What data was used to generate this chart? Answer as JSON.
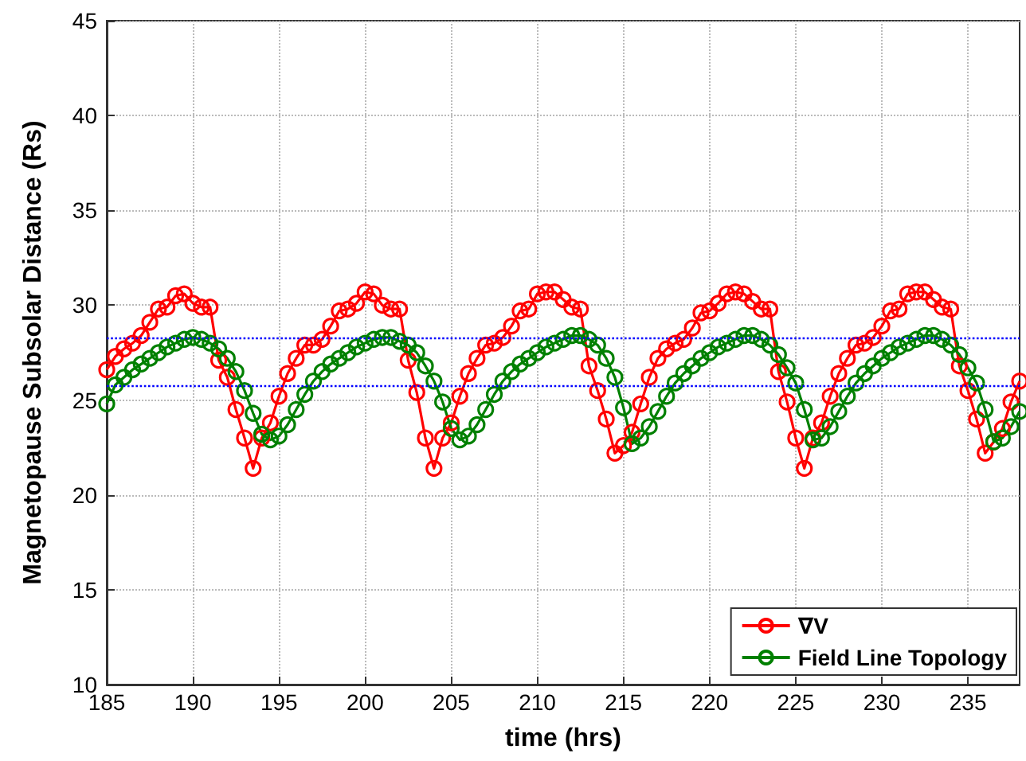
{
  "chart_data": {
    "type": "line",
    "xlabel": "time (hrs)",
    "ylabel": "Magnetopause Subsolar Distance (Rs)",
    "x": [
      185,
      185.5,
      186,
      186.5,
      187,
      187.5,
      188,
      188.5,
      189,
      189.5,
      190,
      190.5,
      191,
      191.5,
      192,
      192.5,
      193,
      193.5,
      194,
      194.5,
      195,
      195.5,
      196,
      196.5,
      197,
      197.5,
      198,
      198.5,
      199,
      199.5,
      200,
      200.5,
      201,
      201.5,
      202,
      202.5,
      203,
      203.5,
      204,
      204.5,
      205,
      205.5,
      206,
      206.5,
      207,
      207.5,
      208,
      208.5,
      209,
      209.5,
      210,
      210.5,
      211,
      211.5,
      212,
      212.5,
      213,
      213.5,
      214,
      214.5,
      215,
      215.5,
      216,
      216.5,
      217,
      217.5,
      218,
      218.5,
      219,
      219.5,
      220,
      220.5,
      221,
      221.5,
      222,
      222.5,
      223,
      223.5,
      224,
      224.5,
      225,
      225.5,
      226,
      226.5,
      227,
      227.5,
      228,
      228.5,
      229,
      229.5,
      230,
      230.5,
      231,
      231.5,
      232,
      232.5,
      233,
      233.5,
      234,
      234.5,
      235,
      235.5,
      236,
      236.5,
      237,
      237.5,
      238
    ],
    "series": [
      {
        "name": "∇V",
        "color": "#ff0000",
        "values": [
          26.6,
          27.3,
          27.7,
          28.0,
          28.4,
          29.1,
          29.8,
          29.9,
          30.5,
          30.6,
          30.1,
          29.9,
          29.9,
          27.1,
          26.2,
          24.5,
          23.0,
          21.4,
          23.0,
          23.8,
          25.2,
          26.4,
          27.2,
          27.9,
          27.9,
          28.2,
          28.9,
          29.7,
          29.8,
          30.1,
          30.7,
          30.6,
          30.0,
          29.8,
          29.8,
          27.1,
          25.4,
          23.0,
          21.4,
          23.0,
          23.8,
          25.2,
          26.4,
          27.2,
          27.9,
          28.0,
          28.3,
          28.9,
          29.7,
          29.8,
          30.6,
          30.7,
          30.7,
          30.3,
          29.9,
          29.8,
          26.8,
          25.5,
          24.0,
          22.2,
          22.6,
          23.3,
          24.8,
          26.2,
          27.2,
          27.7,
          28.0,
          28.2,
          28.8,
          29.6,
          29.7,
          30.1,
          30.6,
          30.7,
          30.6,
          30.2,
          29.8,
          29.8,
          26.5,
          24.9,
          23.0,
          21.4,
          23.0,
          23.8,
          25.2,
          26.4,
          27.2,
          27.9,
          28.0,
          28.3,
          28.9,
          29.7,
          29.8,
          30.6,
          30.7,
          30.7,
          30.3,
          29.9,
          29.8,
          26.8,
          25.5,
          24.0,
          22.2,
          22.8,
          23.5,
          24.9,
          26.0
        ]
      },
      {
        "name": "Field Line Topology",
        "color": "#008000",
        "values": [
          24.8,
          25.8,
          26.2,
          26.6,
          26.9,
          27.2,
          27.5,
          27.8,
          28.0,
          28.2,
          28.3,
          28.2,
          28.0,
          27.7,
          27.2,
          26.5,
          25.5,
          24.3,
          23.2,
          22.9,
          23.1,
          23.7,
          24.5,
          25.3,
          26.0,
          26.5,
          26.9,
          27.2,
          27.5,
          27.8,
          28.0,
          28.2,
          28.3,
          28.3,
          28.1,
          27.9,
          27.5,
          26.8,
          26.0,
          24.9,
          23.5,
          22.9,
          23.1,
          23.7,
          24.5,
          25.3,
          26.0,
          26.5,
          26.9,
          27.2,
          27.5,
          27.8,
          28.0,
          28.2,
          28.4,
          28.4,
          28.2,
          27.9,
          27.2,
          26.2,
          24.6,
          22.7,
          23.0,
          23.6,
          24.4,
          25.2,
          25.9,
          26.4,
          26.8,
          27.2,
          27.5,
          27.8,
          28.0,
          28.2,
          28.4,
          28.4,
          28.2,
          27.9,
          27.4,
          26.7,
          25.9,
          24.5,
          22.9,
          23.0,
          23.6,
          24.4,
          25.2,
          25.9,
          26.4,
          26.8,
          27.2,
          27.5,
          27.8,
          28.0,
          28.2,
          28.4,
          28.4,
          28.2,
          27.9,
          27.4,
          26.7,
          25.9,
          24.5,
          22.8,
          23.0,
          23.6,
          24.4
        ]
      }
    ],
    "xlim": [
      185,
      238
    ],
    "xticks": [
      185,
      190,
      195,
      200,
      205,
      210,
      215,
      220,
      225,
      230,
      235
    ],
    "ylim": [
      10,
      45
    ],
    "yticks": [
      10,
      15,
      20,
      25,
      30,
      35,
      40,
      45
    ],
    "ref_lines": [
      {
        "axis": "y",
        "value": 28.3,
        "color": "#0000ff",
        "line_style": "dotted"
      },
      {
        "axis": "y",
        "value": 25.8,
        "color": "#0000ff",
        "line_style": "dotted"
      }
    ],
    "grid": true,
    "legend": "bottom right",
    "marker": "circle",
    "line_style": "solid"
  }
}
